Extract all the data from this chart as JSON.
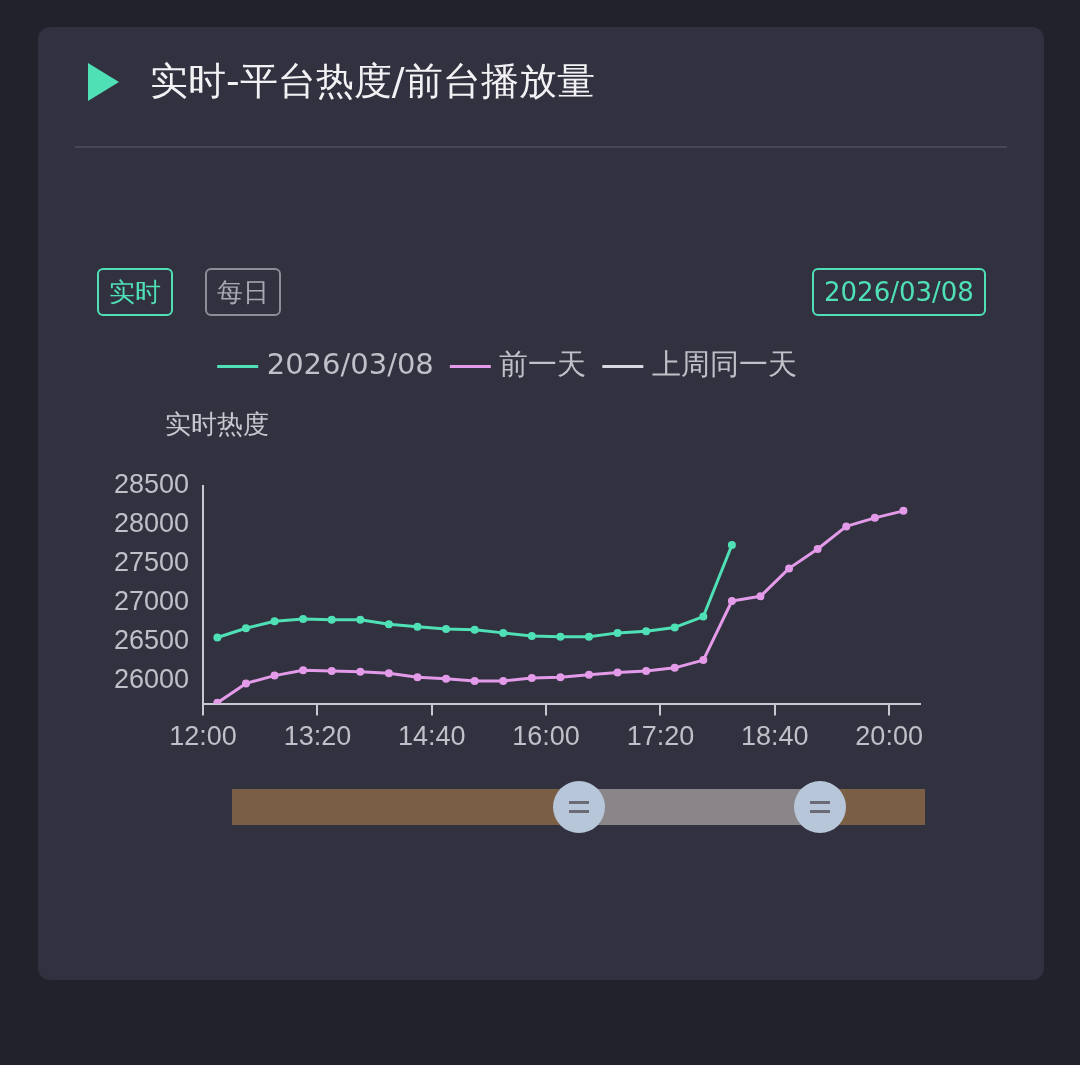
{
  "chart_data": {
    "type": "line",
    "title": "实时-平台热度/前台播放量",
    "ylabel": "实时热度",
    "annotations": [
      "实时",
      "每日",
      "2026/03/08"
    ],
    "x": [
      12.1667,
      12.5,
      12.8333,
      13.1667,
      13.5,
      13.8333,
      14.1667,
      14.5,
      14.8333,
      15.1667,
      15.5,
      15.8333,
      16.1667,
      16.5,
      16.8333,
      17.1667,
      17.5,
      17.8333,
      18.1667,
      18.5,
      18.8333,
      19.1667,
      19.5,
      19.8333,
      20.1667
    ],
    "series": [
      {
        "name": "2026/03/08",
        "color": "#4fe0b6",
        "values": [
          26550,
          26670,
          26760,
          26790,
          26780,
          26780,
          26720,
          26690,
          26660,
          26650,
          26610,
          26570,
          26560,
          26560,
          26610,
          26630,
          26680,
          26820,
          27740,
          null,
          null,
          null,
          null,
          null,
          null
        ]
      },
      {
        "name": "前一天",
        "color": "#e39ae8",
        "values": [
          25710,
          25960,
          26060,
          26130,
          26120,
          26110,
          26090,
          26040,
          26020,
          25990,
          25990,
          26030,
          26040,
          26070,
          26100,
          26120,
          26160,
          26260,
          27020,
          27080,
          27440,
          27690,
          27980,
          28090,
          28180
        ]
      },
      {
        "name": "上周同一天",
        "color": "#d8d8e0",
        "values": [
          null,
          null,
          null,
          null,
          null,
          null,
          null,
          null,
          null,
          null,
          null,
          null,
          null,
          null,
          null,
          null,
          null,
          null,
          null,
          null,
          null,
          null,
          null,
          null,
          null
        ]
      }
    ],
    "xlim": [
      12,
      20.36
    ],
    "xticks": [
      {
        "value": 12,
        "label": "12:00"
      },
      {
        "value": 13.3333,
        "label": "13:20"
      },
      {
        "value": 14.6667,
        "label": "14:40"
      },
      {
        "value": 16,
        "label": "16:00"
      },
      {
        "value": 17.3333,
        "label": "17:20"
      },
      {
        "value": 18.6667,
        "label": "18:40"
      },
      {
        "value": 20,
        "label": "20:00"
      }
    ],
    "ylim": [
      25700,
      28500
    ],
    "yticks": [
      26000,
      26500,
      27000,
      27500,
      28000,
      28500
    ],
    "legend": "top",
    "marker": "circle",
    "line_style": "solid"
  }
}
